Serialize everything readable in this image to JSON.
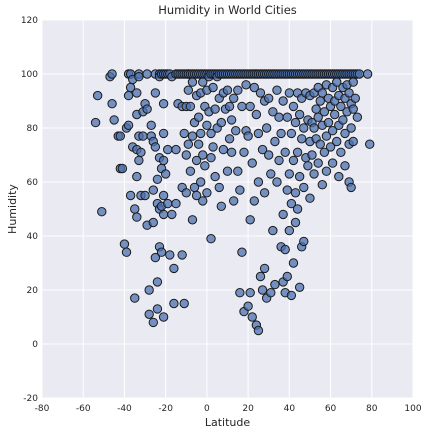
{
  "chart_data": {
    "type": "scatter",
    "title": "Humidity in World Cities",
    "xlabel": "Latitude",
    "ylabel": "Humidity",
    "xlim": [
      -80,
      100
    ],
    "ylim": [
      -20,
      120
    ],
    "xticks": [
      "-80",
      "-60",
      "-40",
      "-20",
      "0",
      "20",
      "40",
      "60",
      "80",
      "100"
    ],
    "yticks": [
      "-20",
      "0",
      "20",
      "40",
      "60",
      "80",
      "100",
      "120"
    ],
    "grid": true,
    "colors": {
      "point_fill": "#4c72b0",
      "point_edge": "#1a1a1a",
      "plot_background": "#eaeaf2",
      "grid": "#ffffff"
    },
    "points": [
      [
        -54,
        82
      ],
      [
        -53,
        92
      ],
      [
        -51,
        49
      ],
      [
        -47,
        99
      ],
      [
        -46,
        100
      ],
      [
        -46,
        89
      ],
      [
        -45,
        83
      ],
      [
        -43,
        77
      ],
      [
        -42,
        77
      ],
      [
        -42,
        65
      ],
      [
        -41,
        65
      ],
      [
        -40,
        37
      ],
      [
        -39,
        80
      ],
      [
        -39,
        34
      ],
      [
        -38,
        81
      ],
      [
        -38,
        92
      ],
      [
        -38,
        100
      ],
      [
        -37,
        100
      ],
      [
        -37,
        95
      ],
      [
        -37,
        55
      ],
      [
        -36,
        98
      ],
      [
        -36,
        73
      ],
      [
        -35,
        50
      ],
      [
        -35,
        17
      ],
      [
        -34,
        93
      ],
      [
        -34,
        85
      ],
      [
        -34,
        72
      ],
      [
        -34,
        62
      ],
      [
        -34,
        47
      ],
      [
        -33,
        100
      ],
      [
        -33,
        99
      ],
      [
        -33,
        77
      ],
      [
        -33,
        68
      ],
      [
        -32,
        71
      ],
      [
        -32,
        55
      ],
      [
        -31,
        86
      ],
      [
        -31,
        77
      ],
      [
        -30,
        89
      ],
      [
        -30,
        55
      ],
      [
        -29,
        100
      ],
      [
        -29,
        87
      ],
      [
        -29,
        44
      ],
      [
        -28,
        20
      ],
      [
        -28,
        11
      ],
      [
        -27,
        81
      ],
      [
        -27,
        77
      ],
      [
        -26,
        75
      ],
      [
        -26,
        57
      ],
      [
        -26,
        45
      ],
      [
        -26,
        8
      ],
      [
        -25,
        100
      ],
      [
        -25,
        93
      ],
      [
        -25,
        73
      ],
      [
        -25,
        32
      ],
      [
        -24,
        61
      ],
      [
        -24,
        52
      ],
      [
        -24,
        23
      ],
      [
        -24,
        13
      ],
      [
        -23,
        100
      ],
      [
        -23,
        99
      ],
      [
        -23,
        69
      ],
      [
        -23,
        50
      ],
      [
        -23,
        36
      ],
      [
        -22,
        100
      ],
      [
        -22,
        65
      ],
      [
        -22,
        51
      ],
      [
        -22,
        34
      ],
      [
        -21,
        100
      ],
      [
        -21,
        89
      ],
      [
        -21,
        78
      ],
      [
        -21,
        68
      ],
      [
        -21,
        55
      ],
      [
        -21,
        48
      ],
      [
        -21,
        10
      ],
      [
        -20,
        100
      ],
      [
        -20,
        63
      ],
      [
        -19,
        100
      ],
      [
        -19,
        72
      ],
      [
        -19,
        52
      ],
      [
        -18,
        100
      ],
      [
        -18,
        33
      ],
      [
        -17,
        99
      ],
      [
        -17,
        48
      ],
      [
        -16,
        28
      ],
      [
        -16,
        15
      ],
      [
        -15,
        100
      ],
      [
        -15,
        72
      ],
      [
        -15,
        52
      ],
      [
        -14,
        100
      ],
      [
        -14,
        89
      ],
      [
        -13,
        100
      ],
      [
        -12,
        100
      ],
      [
        -12,
        88
      ],
      [
        -12,
        58
      ],
      [
        -12,
        33
      ],
      [
        -11,
        100
      ],
      [
        -11,
        78
      ],
      [
        -11,
        15
      ],
      [
        -10,
        100
      ],
      [
        -10,
        88
      ],
      [
        -10,
        70
      ],
      [
        -10,
        56
      ],
      [
        -9,
        100
      ],
      [
        -9,
        100
      ],
      [
        -9,
        94
      ],
      [
        -9,
        74
      ],
      [
        -8,
        100
      ],
      [
        -8,
        88
      ],
      [
        -8,
        64
      ],
      [
        -7,
        100
      ],
      [
        -7,
        97
      ],
      [
        -7,
        77
      ],
      [
        -7,
        46
      ],
      [
        -6,
        100
      ],
      [
        -6,
        82
      ],
      [
        -6,
        58
      ],
      [
        -5,
        100
      ],
      [
        -5,
        92
      ],
      [
        -5,
        68
      ],
      [
        -5,
        55
      ],
      [
        -4,
        100
      ],
      [
        -4,
        84
      ],
      [
        -4,
        74
      ],
      [
        -3,
        100
      ],
      [
        -3,
        93
      ],
      [
        -3,
        78
      ],
      [
        -3,
        60
      ],
      [
        -2,
        100
      ],
      [
        -2,
        97
      ],
      [
        -2,
        70
      ],
      [
        -2,
        53
      ],
      [
        -1,
        100
      ],
      [
        -1,
        88
      ],
      [
        -1,
        66
      ],
      [
        0,
        100
      ],
      [
        0,
        94
      ],
      [
        0,
        81
      ],
      [
        0,
        56
      ],
      [
        1,
        100
      ],
      [
        1,
        99
      ],
      [
        1,
        86
      ],
      [
        2,
        100
      ],
      [
        2,
        78
      ],
      [
        2,
        69
      ],
      [
        2,
        39
      ],
      [
        3,
        100
      ],
      [
        3,
        95
      ],
      [
        3,
        73
      ],
      [
        4,
        100
      ],
      [
        4,
        87
      ],
      [
        4,
        62
      ],
      [
        5,
        100
      ],
      [
        5,
        99
      ],
      [
        5,
        80
      ],
      [
        6,
        100
      ],
      [
        6,
        91
      ],
      [
        6,
        58
      ],
      [
        7,
        100
      ],
      [
        7,
        82
      ],
      [
        7,
        51
      ],
      [
        8,
        100
      ],
      [
        8,
        93
      ],
      [
        8,
        72
      ],
      [
        9,
        100
      ],
      [
        9,
        87
      ],
      [
        10,
        100
      ],
      [
        10,
        94
      ],
      [
        10,
        64
      ],
      [
        11,
        100
      ],
      [
        11,
        88
      ],
      [
        11,
        76
      ],
      [
        12,
        100
      ],
      [
        12,
        83
      ],
      [
        12,
        71
      ],
      [
        13,
        100
      ],
      [
        13,
        91
      ],
      [
        13,
        53
      ],
      [
        14,
        100
      ],
      [
        14,
        79
      ],
      [
        15,
        100
      ],
      [
        15,
        94
      ],
      [
        15,
        64
      ],
      [
        16,
        100
      ],
      [
        16,
        19
      ],
      [
        16,
        57
      ],
      [
        17,
        100
      ],
      [
        17,
        88
      ],
      [
        17,
        34
      ],
      [
        18,
        100
      ],
      [
        18,
        71
      ],
      [
        18,
        12
      ],
      [
        19,
        100
      ],
      [
        19,
        96
      ],
      [
        19,
        79
      ],
      [
        20,
        100
      ],
      [
        20,
        77
      ],
      [
        20,
        14
      ],
      [
        21,
        100
      ],
      [
        21,
        88
      ],
      [
        21,
        46
      ],
      [
        21,
        19
      ],
      [
        22,
        100
      ],
      [
        22,
        67
      ],
      [
        22,
        10
      ],
      [
        23,
        100
      ],
      [
        23,
        95
      ],
      [
        23,
        53
      ],
      [
        24,
        100
      ],
      [
        24,
        85
      ],
      [
        24,
        7
      ],
      [
        25,
        100
      ],
      [
        25,
        78
      ],
      [
        25,
        60
      ],
      [
        25,
        5
      ],
      [
        26,
        100
      ],
      [
        26,
        93
      ],
      [
        26,
        25
      ],
      [
        27,
        100
      ],
      [
        27,
        72
      ],
      [
        27,
        20
      ],
      [
        28,
        100
      ],
      [
        28,
        90
      ],
      [
        28,
        56
      ],
      [
        28,
        28
      ],
      [
        29,
        100
      ],
      [
        29,
        80
      ],
      [
        29,
        17
      ],
      [
        30,
        100
      ],
      [
        30,
        91
      ],
      [
        30,
        70
      ],
      [
        31,
        100
      ],
      [
        31,
        63
      ],
      [
        31,
        19
      ],
      [
        32,
        100
      ],
      [
        32,
        86
      ],
      [
        32,
        42
      ],
      [
        33,
        100
      ],
      [
        33,
        75
      ],
      [
        33,
        22
      ],
      [
        34,
        100
      ],
      [
        34,
        94
      ],
      [
        34,
        60
      ],
      [
        35,
        100
      ],
      [
        35,
        84
      ],
      [
        35,
        68
      ],
      [
        36,
        100
      ],
      [
        36,
        78
      ],
      [
        36,
        36
      ],
      [
        37,
        100
      ],
      [
        37,
        90
      ],
      [
        37,
        48
      ],
      [
        37,
        23
      ],
      [
        38,
        100
      ],
      [
        38,
        71
      ],
      [
        38,
        35
      ],
      [
        38,
        19
      ],
      [
        39,
        100
      ],
      [
        39,
        84
      ],
      [
        39,
        57
      ],
      [
        39,
        25
      ],
      [
        40,
        100
      ],
      [
        40,
        93
      ],
      [
        40,
        63
      ],
      [
        40,
        42
      ],
      [
        41,
        100
      ],
      [
        41,
        78
      ],
      [
        41,
        52
      ],
      [
        41,
        18
      ],
      [
        42,
        100
      ],
      [
        42,
        88
      ],
      [
        42,
        68
      ],
      [
        42,
        30
      ],
      [
        43,
        100
      ],
      [
        43,
        82
      ],
      [
        43,
        56
      ],
      [
        43,
        45
      ],
      [
        44,
        100
      ],
      [
        44,
        93
      ],
      [
        44,
        71
      ],
      [
        44,
        50
      ],
      [
        45,
        100
      ],
      [
        45,
        85
      ],
      [
        45,
        62
      ],
      [
        45,
        21
      ],
      [
        46,
        100
      ],
      [
        46,
        91
      ],
      [
        46,
        76
      ],
      [
        46,
        36
      ],
      [
        47,
        100
      ],
      [
        47,
        80
      ],
      [
        47,
        58
      ],
      [
        47,
        38
      ],
      [
        48,
        100
      ],
      [
        48,
        93
      ],
      [
        48,
        69
      ],
      [
        49,
        100
      ],
      [
        49,
        83
      ],
      [
        49,
        66
      ],
      [
        50,
        100
      ],
      [
        50,
        92
      ],
      [
        50,
        75
      ],
      [
        50,
        54
      ],
      [
        51,
        100
      ],
      [
        51,
        82
      ],
      [
        51,
        70
      ],
      [
        52,
        100
      ],
      [
        52,
        93
      ],
      [
        52,
        80
      ],
      [
        52,
        63
      ],
      [
        53,
        100
      ],
      [
        53,
        87
      ],
      [
        53,
        76
      ],
      [
        54,
        100
      ],
      [
        54,
        95
      ],
      [
        54,
        84
      ],
      [
        54,
        67
      ],
      [
        55,
        100
      ],
      [
        55,
        90
      ],
      [
        55,
        74
      ],
      [
        56,
        100
      ],
      [
        56,
        93
      ],
      [
        56,
        81
      ],
      [
        56,
        59
      ],
      [
        57,
        100
      ],
      [
        57,
        86
      ],
      [
        57,
        71
      ],
      [
        58,
        100
      ],
      [
        58,
        96
      ],
      [
        58,
        77
      ],
      [
        58,
        64
      ],
      [
        59,
        100
      ],
      [
        59,
        91
      ],
      [
        59,
        82
      ],
      [
        60,
        100
      ],
      [
        60,
        88
      ],
      [
        60,
        73
      ],
      [
        61,
        100
      ],
      [
        61,
        95
      ],
      [
        61,
        79
      ],
      [
        61,
        67
      ],
      [
        62,
        100
      ],
      [
        62,
        90
      ],
      [
        62,
        85
      ],
      [
        63,
        100
      ],
      [
        63,
        97
      ],
      [
        63,
        75
      ],
      [
        64,
        100
      ],
      [
        64,
        92
      ],
      [
        64,
        81
      ],
      [
        64,
        62
      ],
      [
        65,
        100
      ],
      [
        65,
        88
      ],
      [
        65,
        71
      ],
      [
        66,
        100
      ],
      [
        66,
        95
      ],
      [
        66,
        83
      ],
      [
        67,
        100
      ],
      [
        67,
        91
      ],
      [
        67,
        78
      ],
      [
        67,
        66
      ],
      [
        68,
        100
      ],
      [
        68,
        96
      ],
      [
        68,
        86
      ],
      [
        69,
        100
      ],
      [
        69,
        93
      ],
      [
        69,
        74
      ],
      [
        69,
        60
      ],
      [
        70,
        100
      ],
      [
        70,
        89
      ],
      [
        70,
        80
      ],
      [
        70,
        58
      ],
      [
        71,
        100
      ],
      [
        71,
        97
      ],
      [
        71,
        87
      ],
      [
        71,
        75
      ],
      [
        72,
        100
      ],
      [
        72,
        91
      ],
      [
        73,
        100
      ],
      [
        73,
        84
      ],
      [
        74,
        100
      ],
      [
        78,
        100
      ],
      [
        79,
        74
      ]
    ]
  }
}
